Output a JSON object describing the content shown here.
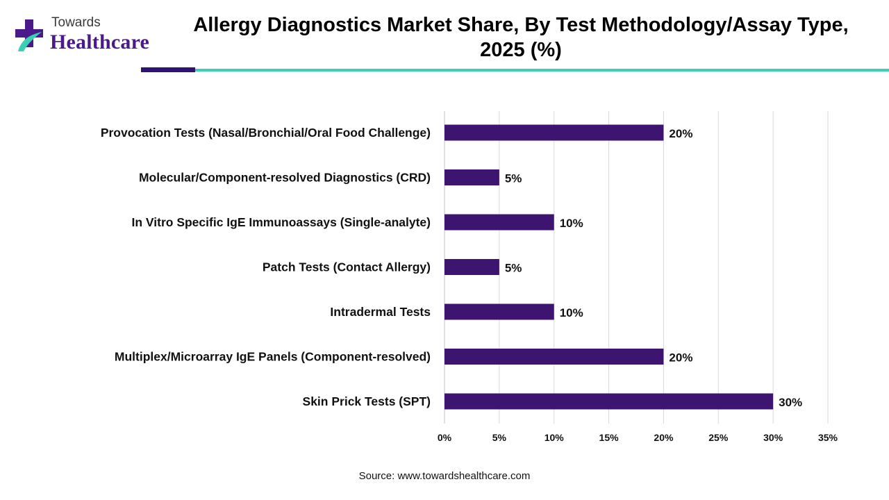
{
  "brand": {
    "line1": "Towards",
    "line2": "Healthcare",
    "colors": {
      "purple": "#4a1a8a",
      "teal": "#3ad1b2"
    }
  },
  "header": {
    "title_line1": "Allergy Diagnostics Market Share, By Test Methodology/Assay Type,",
    "title_line2": "2025 (%)"
  },
  "chart_data": {
    "type": "bar",
    "orientation": "horizontal",
    "title": "Allergy Diagnostics Market Share, By Test Methodology/Assay Type, 2025 (%)",
    "categories": [
      "Provocation Tests (Nasal/Bronchial/Oral Food Challenge)",
      "Molecular/Component-resolved Diagnostics (CRD)",
      "In Vitro Specific IgE Immunoassays (Single-analyte)",
      "Patch Tests (Contact Allergy)",
      "Intradermal Tests",
      "Multiplex/Microarray IgE Panels (Component-resolved)",
      "Skin Prick Tests (SPT)"
    ],
    "values": [
      20,
      5,
      10,
      5,
      10,
      20,
      30
    ],
    "data_labels": [
      "20%",
      "5%",
      "10%",
      "5%",
      "10%",
      "20%",
      "30%"
    ],
    "xlim": [
      0,
      35
    ],
    "x_ticks": [
      0,
      5,
      10,
      15,
      20,
      25,
      30,
      35
    ],
    "x_tick_labels": [
      "0%",
      "5%",
      "10%",
      "15%",
      "20%",
      "25%",
      "30%",
      "35%"
    ],
    "bar_color": "#3d1470",
    "grid": "vertical",
    "legend": "none"
  },
  "footer": {
    "source": "Source: www.towardshealthcare.com"
  }
}
